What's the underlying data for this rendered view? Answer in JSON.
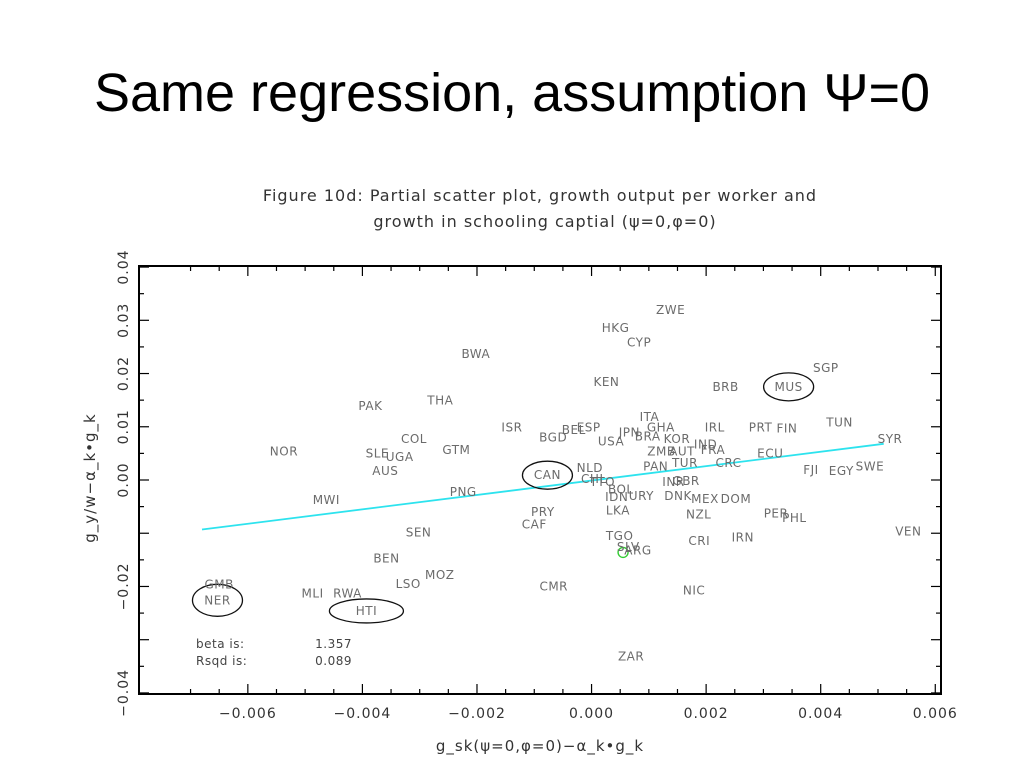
{
  "slide": {
    "title": "Same regression, assumption Ψ=0"
  },
  "chart_data": {
    "type": "scatter",
    "title_lines": [
      "Figure 10d:  Partial scatter plot, growth output per worker and",
      "growth in schooling captial (ψ=0,φ=0)"
    ],
    "xlabel": "g_sk(ψ=0,φ=0)−α_k•g_k",
    "ylabel": "g_y/w−α_k•g_k",
    "xlim": [
      -0.0079,
      0.0061
    ],
    "ylim": [
      -0.0402,
      0.0402
    ],
    "x_ticks": [
      -0.006,
      -0.004,
      -0.002,
      0.0,
      0.002,
      0.004,
      0.006
    ],
    "x_tick_labels": [
      "−0.006",
      "−0.004",
      "−0.002",
      "0.000",
      "0.002",
      "0.004",
      "0.006"
    ],
    "y_ticks": [
      -0.04,
      -0.02,
      0.0,
      0.01,
      0.02,
      0.03,
      0.04
    ],
    "y_tick_labels": [
      "−0.04",
      "−0.02",
      "0.00",
      "0.01",
      "0.02",
      "0.03",
      "0.04"
    ],
    "grid": false,
    "fit_line": {
      "color": "#2de3ee",
      "x": [
        -0.0068,
        0.0051
      ],
      "y": [
        -0.0093,
        0.0068
      ]
    },
    "stats": [
      {
        "label": "beta is:",
        "value": "1.357"
      },
      {
        "label": "Rsqd is:",
        "value": "0.089"
      }
    ],
    "highlight_point": {
      "x": 0.00055,
      "y": -0.0136,
      "color": "#33cc33"
    },
    "points": [
      {
        "label": "ZWE",
        "x": 0.00138,
        "y": 0.0319
      },
      {
        "label": "HKG",
        "x": 0.00042,
        "y": 0.0286
      },
      {
        "label": "CYP",
        "x": 0.00083,
        "y": 0.0258
      },
      {
        "label": "BWA",
        "x": -0.00202,
        "y": 0.0237
      },
      {
        "label": "KEN",
        "x": 0.00026,
        "y": 0.0184
      },
      {
        "label": "SGP",
        "x": 0.00409,
        "y": 0.021
      },
      {
        "label": "BRB",
        "x": 0.00234,
        "y": 0.0175
      },
      {
        "label": "MUS",
        "x": 0.00344,
        "y": 0.0175
      },
      {
        "label": "THA",
        "x": -0.00264,
        "y": 0.0149
      },
      {
        "label": "PAK",
        "x": -0.00386,
        "y": 0.0139
      },
      {
        "label": "ITA",
        "x": 0.00101,
        "y": 0.0118
      },
      {
        "label": "TUN",
        "x": 0.00433,
        "y": 0.0108
      },
      {
        "label": "ISR",
        "x": -0.00139,
        "y": 0.0099
      },
      {
        "label": "ESP",
        "x": -5e-05,
        "y": 0.0099
      },
      {
        "label": "GHA",
        "x": 0.00121,
        "y": 0.0099
      },
      {
        "label": "IRL",
        "x": 0.00215,
        "y": 0.0099
      },
      {
        "label": "PRT",
        "x": 0.00295,
        "y": 0.0099
      },
      {
        "label": "FIN",
        "x": 0.00341,
        "y": 0.0097
      },
      {
        "label": "BEL",
        "x": -0.00031,
        "y": 0.0094
      },
      {
        "label": "JPN",
        "x": 0.00066,
        "y": 0.0089
      },
      {
        "label": "BGD",
        "x": -0.00067,
        "y": 0.008
      },
      {
        "label": "COL",
        "x": -0.0031,
        "y": 0.0077
      },
      {
        "label": "BRA",
        "x": 0.00098,
        "y": 0.0082
      },
      {
        "label": "KOR",
        "x": 0.00149,
        "y": 0.0077
      },
      {
        "label": "USA",
        "x": 0.00034,
        "y": 0.0072
      },
      {
        "label": "SYR",
        "x": 0.00521,
        "y": 0.0077
      },
      {
        "label": "IND",
        "x": 0.00199,
        "y": 0.0067
      },
      {
        "label": "NOR",
        "x": -0.00537,
        "y": 0.0054
      },
      {
        "label": "GTM",
        "x": -0.00236,
        "y": 0.0056
      },
      {
        "label": "ZMB",
        "x": 0.00122,
        "y": 0.0054
      },
      {
        "label": "AUT",
        "x": 0.00158,
        "y": 0.0054
      },
      {
        "label": "FRA",
        "x": 0.00212,
        "y": 0.0056
      },
      {
        "label": "ECU",
        "x": 0.00312,
        "y": 0.005
      },
      {
        "label": "SLE",
        "x": -0.00374,
        "y": 0.005
      },
      {
        "label": "UGA",
        "x": -0.00335,
        "y": 0.0043
      },
      {
        "label": "PAN",
        "x": 0.00112,
        "y": 0.0025
      },
      {
        "label": "TUR",
        "x": 0.00163,
        "y": 0.0032
      },
      {
        "label": "CRC",
        "x": 0.00239,
        "y": 0.0032
      },
      {
        "label": "SWE",
        "x": 0.00486,
        "y": 0.0025
      },
      {
        "label": "NLD",
        "x": -3e-05,
        "y": 0.0023
      },
      {
        "label": "FJI",
        "x": 0.00383,
        "y": 0.0019
      },
      {
        "label": "EGY",
        "x": 0.00436,
        "y": 0.0017
      },
      {
        "label": "AUS",
        "x": -0.0036,
        "y": 0.0017
      },
      {
        "label": "CAN",
        "x": -0.00077,
        "y": 0.0009
      },
      {
        "label": "CHL",
        "x": 4e-05,
        "y": 0.0002
      },
      {
        "label": "TTO",
        "x": 0.00019,
        "y": -0.0004
      },
      {
        "label": "INR",
        "x": 0.00143,
        "y": -0.0004
      },
      {
        "label": "GBR",
        "x": 0.00165,
        "y": -0.0002
      },
      {
        "label": "BOL",
        "x": 0.00051,
        "y": -0.0018
      },
      {
        "label": "PNG",
        "x": -0.00224,
        "y": -0.0023
      },
      {
        "label": "IDN",
        "x": 0.00044,
        "y": -0.0032
      },
      {
        "label": "URY",
        "x": 0.00087,
        "y": -0.003
      },
      {
        "label": "DNK",
        "x": 0.00151,
        "y": -0.003
      },
      {
        "label": "MEX",
        "x": 0.00198,
        "y": -0.0036
      },
      {
        "label": "DOM",
        "x": 0.00252,
        "y": -0.0036
      },
      {
        "label": "MWI",
        "x": -0.00463,
        "y": -0.0038
      },
      {
        "label": "PRY",
        "x": -0.00085,
        "y": -0.006
      },
      {
        "label": "LKA",
        "x": 0.00046,
        "y": -0.0057
      },
      {
        "label": "NZL",
        "x": 0.00187,
        "y": -0.0065
      },
      {
        "label": "PER",
        "x": 0.00322,
        "y": -0.0063
      },
      {
        "label": "PHL",
        "x": 0.00354,
        "y": -0.0071
      },
      {
        "label": "CAF",
        "x": -0.001,
        "y": -0.0084
      },
      {
        "label": "SEN",
        "x": -0.00302,
        "y": -0.0099
      },
      {
        "label": "VEN",
        "x": 0.00553,
        "y": -0.0097
      },
      {
        "label": "TGO",
        "x": 0.00049,
        "y": -0.0105
      },
      {
        "label": "CRI",
        "x": 0.00188,
        "y": -0.0115
      },
      {
        "label": "IRN",
        "x": 0.00264,
        "y": -0.0108
      },
      {
        "label": "SLV",
        "x": 0.00064,
        "y": -0.0126
      },
      {
        "label": "ARG",
        "x": 0.00081,
        "y": -0.0132
      },
      {
        "label": "BEN",
        "x": -0.00358,
        "y": -0.0147
      },
      {
        "label": "MOZ",
        "x": -0.00265,
        "y": -0.0178
      },
      {
        "label": "LSO",
        "x": -0.0032,
        "y": -0.0195
      },
      {
        "label": "GMB",
        "x": -0.0065,
        "y": -0.0196
      },
      {
        "label": "CMR",
        "x": -0.00066,
        "y": -0.02
      },
      {
        "label": "MLI",
        "x": -0.00487,
        "y": -0.0213
      },
      {
        "label": "RWA",
        "x": -0.00426,
        "y": -0.0213
      },
      {
        "label": "NIC",
        "x": 0.00179,
        "y": -0.0208
      },
      {
        "label": "NER",
        "x": -0.00653,
        "y": -0.0226
      },
      {
        "label": "HTI",
        "x": -0.00393,
        "y": -0.0246
      },
      {
        "label": "ZAR",
        "x": 0.00069,
        "y": -0.0332
      }
    ],
    "circled": [
      "MUS",
      "CAN",
      "NER",
      "HTI"
    ]
  }
}
